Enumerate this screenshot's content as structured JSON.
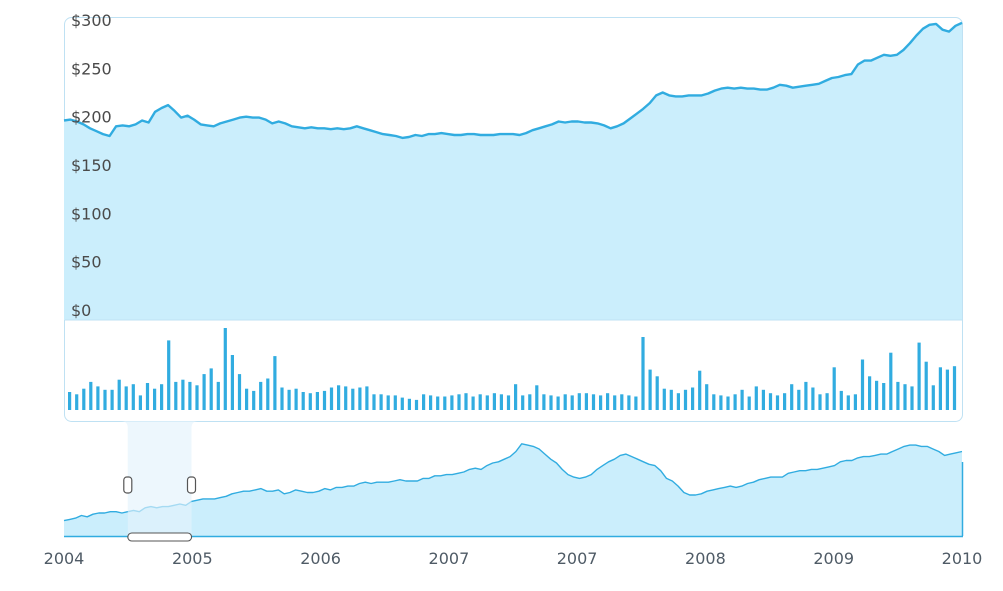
{
  "chart_data": {
    "type": "area",
    "colors": {
      "line": "#31ace0",
      "fill": "#cbeefc",
      "selection": "#e3f3fc",
      "panel_border": "#bfe1f3"
    },
    "price": {
      "y_ticks": [
        "$0",
        "$50",
        "$100",
        "$150",
        "$200",
        "$250",
        "$300"
      ],
      "ylim": [
        0,
        300
      ],
      "values": [
        196,
        197,
        195,
        192,
        188,
        185,
        182,
        180,
        190,
        191,
        190,
        192,
        196,
        194,
        205,
        209,
        212,
        206,
        199,
        201,
        197,
        192,
        191,
        190,
        193,
        195,
        197,
        199,
        200,
        199,
        199,
        197,
        193,
        195,
        193,
        190,
        189,
        188,
        189,
        188,
        188,
        187,
        188,
        187,
        188,
        190,
        188,
        186,
        184,
        182,
        181,
        180,
        178,
        179,
        181,
        180,
        182,
        182,
        183,
        182,
        181,
        181,
        182,
        182,
        181,
        181,
        181,
        182,
        182,
        182,
        181,
        183,
        186,
        188,
        190,
        192,
        195,
        194,
        195,
        195,
        194,
        194,
        193,
        191,
        188,
        190,
        193,
        198,
        203,
        208,
        214,
        222,
        225,
        222,
        221,
        221,
        222,
        222,
        222,
        224,
        227,
        229,
        230,
        229,
        230,
        229,
        229,
        228,
        228,
        230,
        233,
        232,
        230,
        231,
        232,
        233,
        234,
        237,
        240,
        241,
        243,
        244,
        254,
        258,
        258,
        261,
        264,
        263,
        264,
        269,
        276,
        284,
        291,
        295,
        296,
        290,
        288,
        294,
        297
      ]
    },
    "volume": {
      "values": [
        16,
        14,
        19,
        25,
        21,
        18,
        18,
        27,
        21,
        23,
        13,
        24,
        19,
        23,
        62,
        25,
        27,
        25,
        22,
        32,
        37,
        25,
        73,
        49,
        32,
        19,
        17,
        25,
        28,
        48,
        20,
        18,
        19,
        16,
        15,
        16,
        17,
        20,
        22,
        21,
        19,
        20,
        21,
        14,
        14,
        13,
        13,
        11,
        10,
        9,
        14,
        13,
        12,
        12,
        13,
        14,
        15,
        12,
        14,
        13,
        15,
        14,
        13,
        23,
        13,
        14,
        22,
        14,
        13,
        12,
        14,
        13,
        15,
        15,
        14,
        13,
        15,
        13,
        14,
        13,
        12,
        65,
        36,
        30,
        19,
        18,
        15,
        18,
        20,
        35,
        23,
        14,
        13,
        12,
        14,
        18,
        12,
        21,
        18,
        15,
        13,
        15,
        23,
        18,
        25,
        20,
        14,
        15,
        38,
        17,
        13,
        14,
        45,
        30,
        26,
        24,
        51,
        25,
        23,
        21,
        60,
        43,
        22,
        38,
        36,
        39
      ]
    },
    "navigator": {
      "values": [
        12,
        13,
        14,
        16,
        15,
        17,
        18,
        18,
        19,
        19,
        18,
        19,
        20,
        19,
        22,
        23,
        22,
        23,
        23,
        24,
        25,
        24,
        27,
        28,
        29,
        29,
        29,
        30,
        31,
        33,
        34,
        35,
        35,
        36,
        37,
        35,
        35,
        36,
        33,
        34,
        36,
        35,
        34,
        34,
        35,
        37,
        36,
        38,
        38,
        39,
        39,
        41,
        42,
        41,
        42,
        42,
        42,
        43,
        44,
        43,
        43,
        43,
        45,
        45,
        47,
        47,
        48,
        48,
        49,
        50,
        52,
        53,
        52,
        55,
        57,
        58,
        60,
        62,
        66,
        72,
        71,
        70,
        68,
        64,
        60,
        57,
        52,
        48,
        46,
        45,
        46,
        48,
        52,
        55,
        58,
        60,
        63,
        64,
        62,
        60,
        58,
        56,
        55,
        51,
        45,
        43,
        39,
        34,
        32,
        32,
        33,
        35,
        36,
        37,
        38,
        39,
        38,
        39,
        41,
        42,
        44,
        45,
        46,
        46,
        46,
        49,
        50,
        51,
        51,
        52,
        52,
        53,
        54,
        55,
        58,
        59,
        59,
        61,
        62,
        62,
        63,
        64,
        64,
        66,
        68,
        70,
        71,
        71,
        70,
        70,
        68,
        66,
        63,
        64,
        65,
        66
      ]
    },
    "selection": {
      "start": 0.071,
      "end": 0.142
    },
    "x_ticks": [
      "2004",
      "2005",
      "2006",
      "2007",
      "2007",
      "2008",
      "2009",
      "2010"
    ]
  }
}
